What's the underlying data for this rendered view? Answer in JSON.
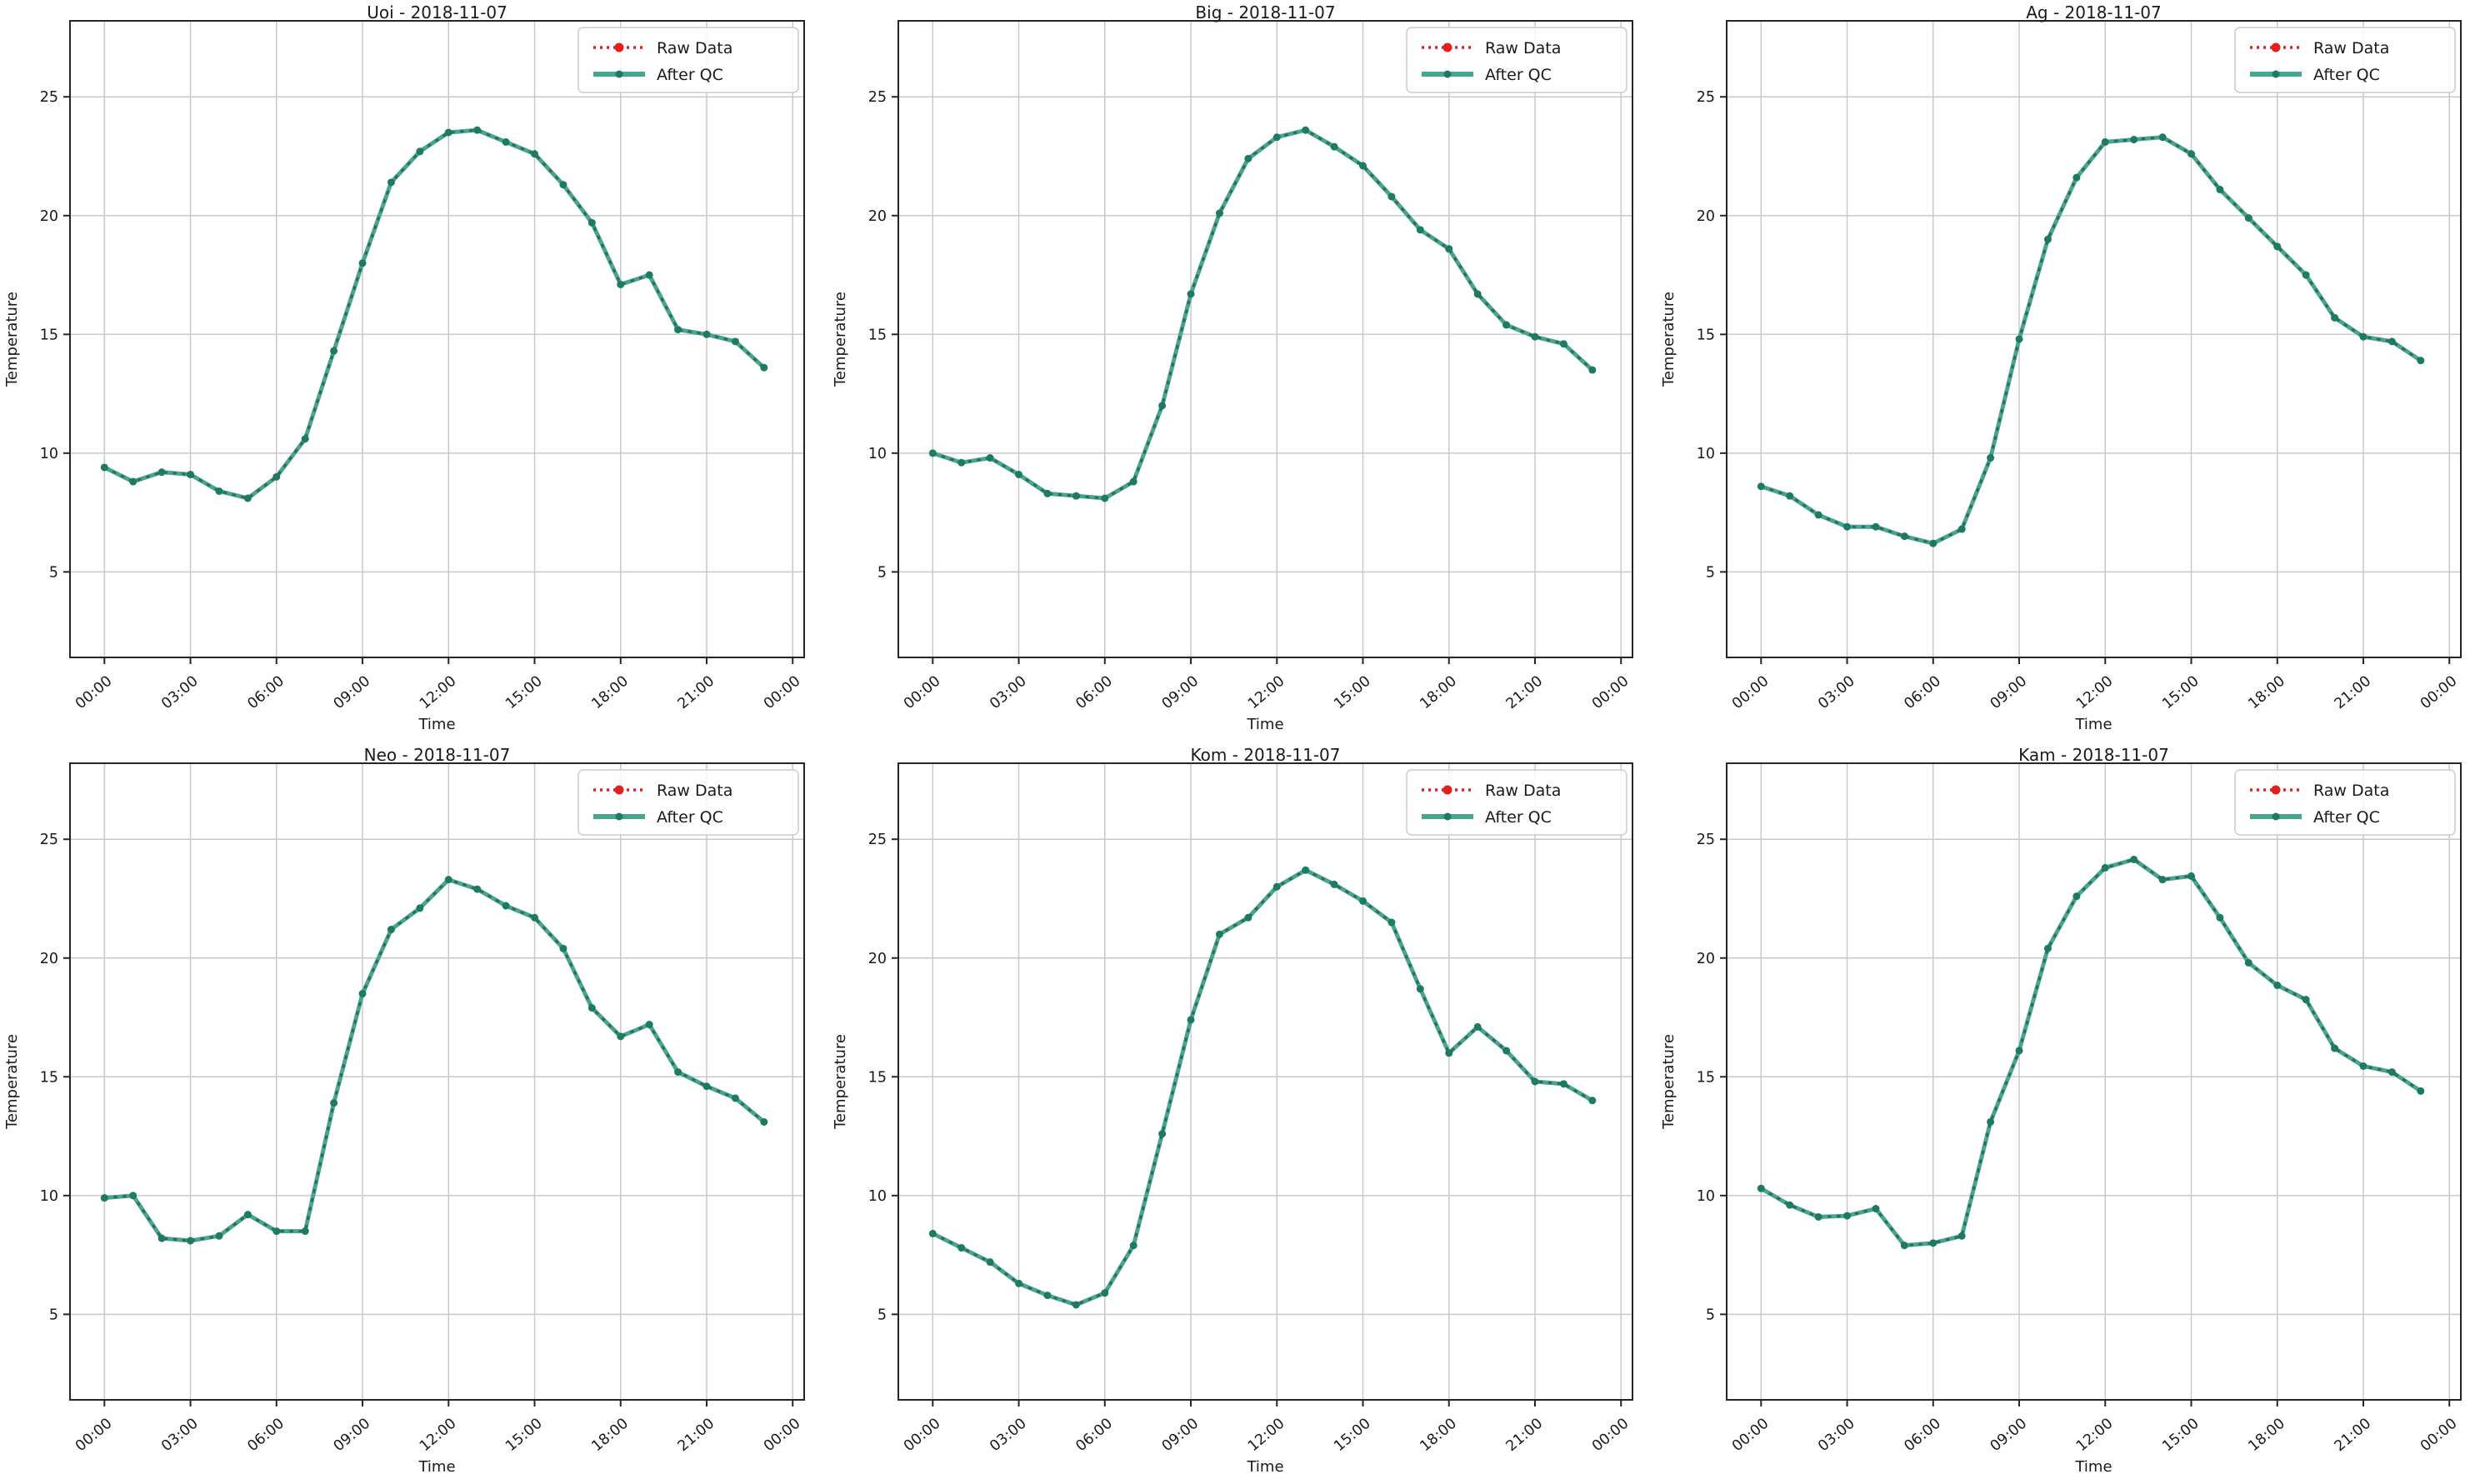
{
  "figure": {
    "date": "2018-11-07",
    "stations": [
      "Uoi",
      "Big",
      "Ag",
      "Neo",
      "Kom",
      "Kam"
    ]
  },
  "axes": {
    "xlabel": "Time",
    "ylabel": "Temperature",
    "x_tick_labels": [
      "00:00",
      "03:00",
      "06:00",
      "09:00",
      "12:00",
      "15:00",
      "18:00",
      "21:00",
      "00:00"
    ],
    "x_tick_hours": [
      0,
      3,
      6,
      9,
      12,
      15,
      18,
      21,
      24
    ],
    "y_ticks": [
      5,
      10,
      15,
      20,
      25
    ],
    "xlim": [
      -1.2,
      24.4
    ],
    "ylim": [
      1.4,
      28.2
    ],
    "grid": true,
    "legend_position": "top-right"
  },
  "legend": {
    "raw_label": "Raw Data",
    "qc_label": "After QC"
  },
  "colors": {
    "raw_red": "#e32020",
    "qc_line": "#47a690",
    "qc_dash_overlay": "#31695c",
    "qc_marker": "#1d7a63",
    "grid": "#c9c9c9",
    "spine": "#262626",
    "text": "#1a1a1a",
    "legend_border": "#cccccc",
    "background": "#ffffff"
  },
  "chart_data": [
    {
      "type": "line",
      "station": "Uoi",
      "title": "Uoi - 2018-11-07",
      "xlabel": "Time",
      "ylabel": "Temperature",
      "x_hours": [
        0,
        1,
        2,
        3,
        4,
        5,
        6,
        7,
        8,
        9,
        10,
        11,
        12,
        13,
        14,
        15,
        16,
        17,
        18,
        19,
        20,
        21,
        22,
        23
      ],
      "series": [
        {
          "name": "Raw Data",
          "values": [
            9.4,
            8.8,
            9.2,
            9.1,
            8.4,
            8.1,
            9.0,
            10.6,
            14.3,
            18.0,
            21.4,
            22.7,
            23.5,
            23.6,
            23.1,
            22.6,
            21.3,
            19.7,
            17.1,
            17.5,
            15.2,
            15.0,
            14.7,
            13.6
          ]
        },
        {
          "name": "After QC",
          "values": [
            9.4,
            8.8,
            9.2,
            9.1,
            8.4,
            8.1,
            9.0,
            10.6,
            14.3,
            18.0,
            21.4,
            22.7,
            23.5,
            23.6,
            23.1,
            22.6,
            21.3,
            19.7,
            17.1,
            17.5,
            15.2,
            15.0,
            14.7,
            13.6
          ]
        }
      ]
    },
    {
      "type": "line",
      "station": "Big",
      "title": "Big - 2018-11-07",
      "xlabel": "Time",
      "ylabel": "Temperature",
      "x_hours": [
        0,
        1,
        2,
        3,
        4,
        5,
        6,
        7,
        8,
        9,
        10,
        11,
        12,
        13,
        14,
        15,
        16,
        17,
        18,
        19,
        20,
        21,
        22,
        23
      ],
      "series": [
        {
          "name": "Raw Data",
          "values": [
            10.0,
            9.6,
            9.8,
            9.1,
            8.3,
            8.2,
            8.1,
            8.8,
            12.0,
            16.7,
            20.1,
            22.4,
            23.3,
            23.6,
            22.9,
            22.1,
            20.8,
            19.4,
            18.6,
            16.7,
            15.4,
            14.9,
            14.6,
            13.5
          ]
        },
        {
          "name": "After QC",
          "values": [
            10.0,
            9.6,
            9.8,
            9.1,
            8.3,
            8.2,
            8.1,
            8.8,
            12.0,
            16.7,
            20.1,
            22.4,
            23.3,
            23.6,
            22.9,
            22.1,
            20.8,
            19.4,
            18.6,
            16.7,
            15.4,
            14.9,
            14.6,
            13.5
          ]
        }
      ]
    },
    {
      "type": "line",
      "station": "Ag",
      "title": "Ag - 2018-11-07",
      "xlabel": "Time",
      "ylabel": "Temperature",
      "x_hours": [
        0,
        1,
        2,
        3,
        4,
        5,
        6,
        7,
        8,
        9,
        10,
        11,
        12,
        13,
        14,
        15,
        16,
        17,
        18,
        19,
        20,
        21,
        22,
        23
      ],
      "series": [
        {
          "name": "Raw Data",
          "values": [
            8.6,
            8.2,
            7.4,
            6.9,
            6.9,
            6.5,
            6.2,
            6.8,
            9.8,
            14.8,
            19.0,
            21.6,
            23.1,
            23.2,
            23.3,
            22.6,
            21.1,
            19.9,
            18.7,
            17.5,
            15.7,
            14.9,
            14.7,
            13.9
          ]
        },
        {
          "name": "After QC",
          "values": [
            8.6,
            8.2,
            7.4,
            6.9,
            6.9,
            6.5,
            6.2,
            6.8,
            9.8,
            14.8,
            19.0,
            21.6,
            23.1,
            23.2,
            23.3,
            22.6,
            21.1,
            19.9,
            18.7,
            17.5,
            15.7,
            14.9,
            14.7,
            13.9
          ]
        }
      ]
    },
    {
      "type": "line",
      "station": "Neo",
      "title": "Neo - 2018-11-07",
      "xlabel": "Time",
      "ylabel": "Temperature",
      "x_hours": [
        0,
        1,
        2,
        3,
        4,
        5,
        6,
        7,
        8,
        9,
        10,
        11,
        12,
        13,
        14,
        15,
        16,
        17,
        18,
        19,
        20,
        21,
        22,
        23
      ],
      "series": [
        {
          "name": "Raw Data",
          "values": [
            9.9,
            10.0,
            8.2,
            8.1,
            8.3,
            9.2,
            8.5,
            8.5,
            13.9,
            18.5,
            21.2,
            22.1,
            23.3,
            22.9,
            22.2,
            21.7,
            20.4,
            17.9,
            16.7,
            17.2,
            15.2,
            14.6,
            14.1,
            13.1
          ]
        },
        {
          "name": "After QC",
          "values": [
            9.9,
            10.0,
            8.2,
            8.1,
            8.3,
            9.2,
            8.5,
            8.5,
            13.9,
            18.5,
            21.2,
            22.1,
            23.3,
            22.9,
            22.2,
            21.7,
            20.4,
            17.9,
            16.7,
            17.2,
            15.2,
            14.6,
            14.1,
            13.1
          ]
        }
      ]
    },
    {
      "type": "line",
      "station": "Kom",
      "title": "Kom - 2018-11-07",
      "xlabel": "Time",
      "ylabel": "Temperature",
      "x_hours": [
        0,
        1,
        2,
        3,
        4,
        5,
        6,
        7,
        8,
        9,
        10,
        11,
        12,
        13,
        14,
        15,
        16,
        17,
        18,
        19,
        20,
        21,
        22,
        23
      ],
      "series": [
        {
          "name": "Raw Data",
          "values": [
            8.4,
            7.8,
            7.2,
            6.3,
            5.8,
            5.4,
            5.9,
            7.9,
            12.6,
            17.4,
            21.0,
            21.7,
            23.0,
            23.7,
            23.1,
            22.4,
            21.5,
            18.7,
            16.0,
            17.1,
            16.1,
            14.8,
            14.7,
            14.0
          ]
        },
        {
          "name": "After QC",
          "values": [
            8.4,
            7.8,
            7.2,
            6.3,
            5.8,
            5.4,
            5.9,
            7.9,
            12.6,
            17.4,
            21.0,
            21.7,
            23.0,
            23.7,
            23.1,
            22.4,
            21.5,
            18.7,
            16.0,
            17.1,
            16.1,
            14.8,
            14.7,
            14.0
          ]
        }
      ]
    },
    {
      "type": "line",
      "station": "Kam",
      "title": "Kam - 2018-11-07",
      "xlabel": "Time",
      "ylabel": "Temperature",
      "x_hours": [
        0,
        1,
        2,
        3,
        4,
        5,
        6,
        7,
        8,
        9,
        10,
        11,
        12,
        13,
        14,
        15,
        16,
        17,
        18,
        19,
        20,
        21,
        22,
        23
      ],
      "series": [
        {
          "name": "Raw Data",
          "values": [
            10.3,
            9.6,
            9.1,
            9.15,
            9.45,
            7.9,
            8.0,
            8.3,
            13.1,
            16.1,
            20.4,
            22.6,
            23.8,
            24.15,
            23.3,
            23.45,
            21.7,
            19.8,
            18.85,
            18.25,
            16.2,
            15.45,
            15.2,
            14.4
          ]
        },
        {
          "name": "After QC",
          "values": [
            10.3,
            9.6,
            9.1,
            9.15,
            9.45,
            7.9,
            8.0,
            8.3,
            13.1,
            16.1,
            20.4,
            22.6,
            23.8,
            24.15,
            23.3,
            23.45,
            21.7,
            19.8,
            18.85,
            18.25,
            16.2,
            15.45,
            15.2,
            14.4
          ]
        }
      ]
    }
  ]
}
